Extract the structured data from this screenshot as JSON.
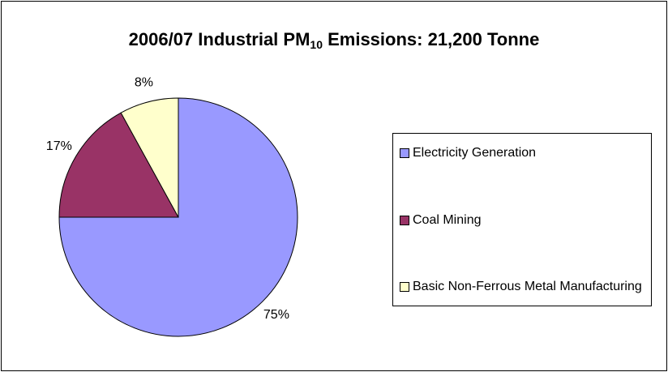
{
  "chart_data": {
    "type": "pie",
    "title_parts": [
      "2006/07 Industrial PM",
      "10",
      " Emissions: 21,200 Tonne"
    ],
    "categories": [
      "Electricity Generation",
      "Coal Mining",
      "Basic Non-Ferrous Metal Manufacturing"
    ],
    "values": [
      75,
      17,
      8
    ],
    "value_labels": [
      "75%",
      "17%",
      "8%"
    ],
    "colors": [
      "#9999ff",
      "#993366",
      "#ffffcc"
    ],
    "legend": "right"
  }
}
